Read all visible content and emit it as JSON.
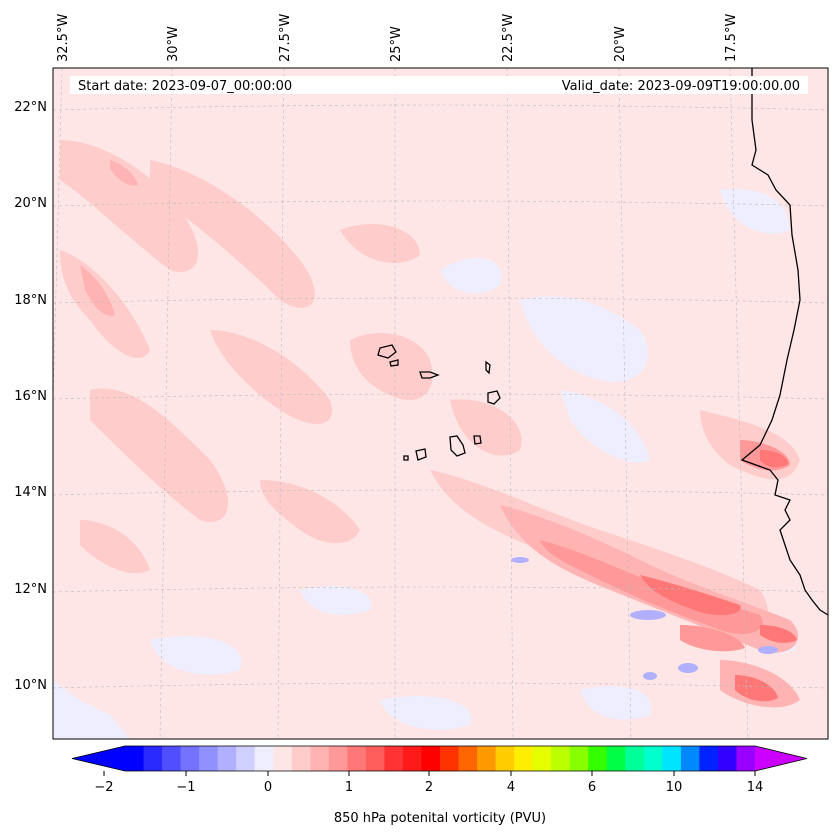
{
  "header": {
    "start_date": "Start date: 2023-09-07_00:00:00",
    "valid_date": "Valid_date: 2023-09-09T19:00:00.00"
  },
  "map": {
    "lon_labels": [
      "32.5°W",
      "30°W",
      "27.5°W",
      "25°W",
      "22.5°W",
      "20°W",
      "17.5°W"
    ],
    "lat_labels": [
      "22°N",
      "20°N",
      "18°N",
      "16°N",
      "14°N",
      "12°N",
      "10°N"
    ],
    "field": "850 hPa potenital vorticity (PVU)"
  },
  "colorbar": {
    "label": "850 hPa potenital vorticity (PVU)",
    "ticks": [
      "−2",
      "−1",
      "0",
      "1",
      "2",
      "4",
      "6",
      "10",
      "14"
    ],
    "colors": [
      "#0000ff",
      "#2a2aff",
      "#4f4fff",
      "#7373ff",
      "#9090ff",
      "#b0b0ff",
      "#d0d0ff",
      "#eeeeff",
      "#ffe6e6",
      "#ffcccc",
      "#ffb3b3",
      "#ff9999",
      "#ff7777",
      "#ff5c5c",
      "#ff3333",
      "#ff1a1a",
      "#ff0000",
      "#ff3300",
      "#ff6600",
      "#ff9900",
      "#ffcc00",
      "#ffee00",
      "#e6ff00",
      "#bbff00",
      "#88ff00",
      "#33ff00",
      "#00ff44",
      "#00ff99",
      "#00ffcc",
      "#00e5ff",
      "#0088ff",
      "#0022ff",
      "#3300ff",
      "#9900ff"
    ],
    "under_color": "#0000ff",
    "over_color": "#cc00ff"
  }
}
